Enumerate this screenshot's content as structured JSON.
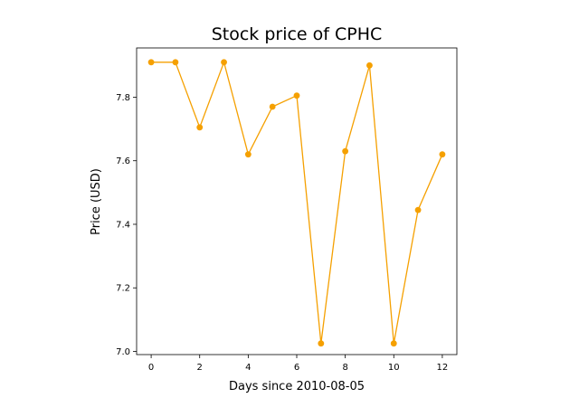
{
  "chart_data": {
    "type": "line",
    "title": "Stock price of CPHC",
    "xlabel": "Days since 2010-08-05",
    "ylabel": "Price (USD)",
    "x": [
      0,
      1,
      2,
      3,
      4,
      5,
      6,
      7,
      8,
      9,
      10,
      11,
      12
    ],
    "series": [
      {
        "values": [
          7.91,
          7.91,
          7.705,
          7.91,
          7.62,
          7.77,
          7.805,
          7.025,
          7.63,
          7.9,
          7.025,
          7.445,
          7.62
        ],
        "color": "#f5a000"
      }
    ],
    "xlim": [
      -0.6,
      12.6
    ],
    "ylim": [
      6.99,
      7.955
    ],
    "xticks": [
      0,
      2,
      4,
      6,
      8,
      10,
      12
    ],
    "yticks": [
      7.0,
      7.2,
      7.4,
      7.6,
      7.8
    ],
    "ytick_labels": [
      "7.0",
      "7.2",
      "7.4",
      "7.6",
      "7.8"
    ],
    "grid": false,
    "legend": "none"
  }
}
